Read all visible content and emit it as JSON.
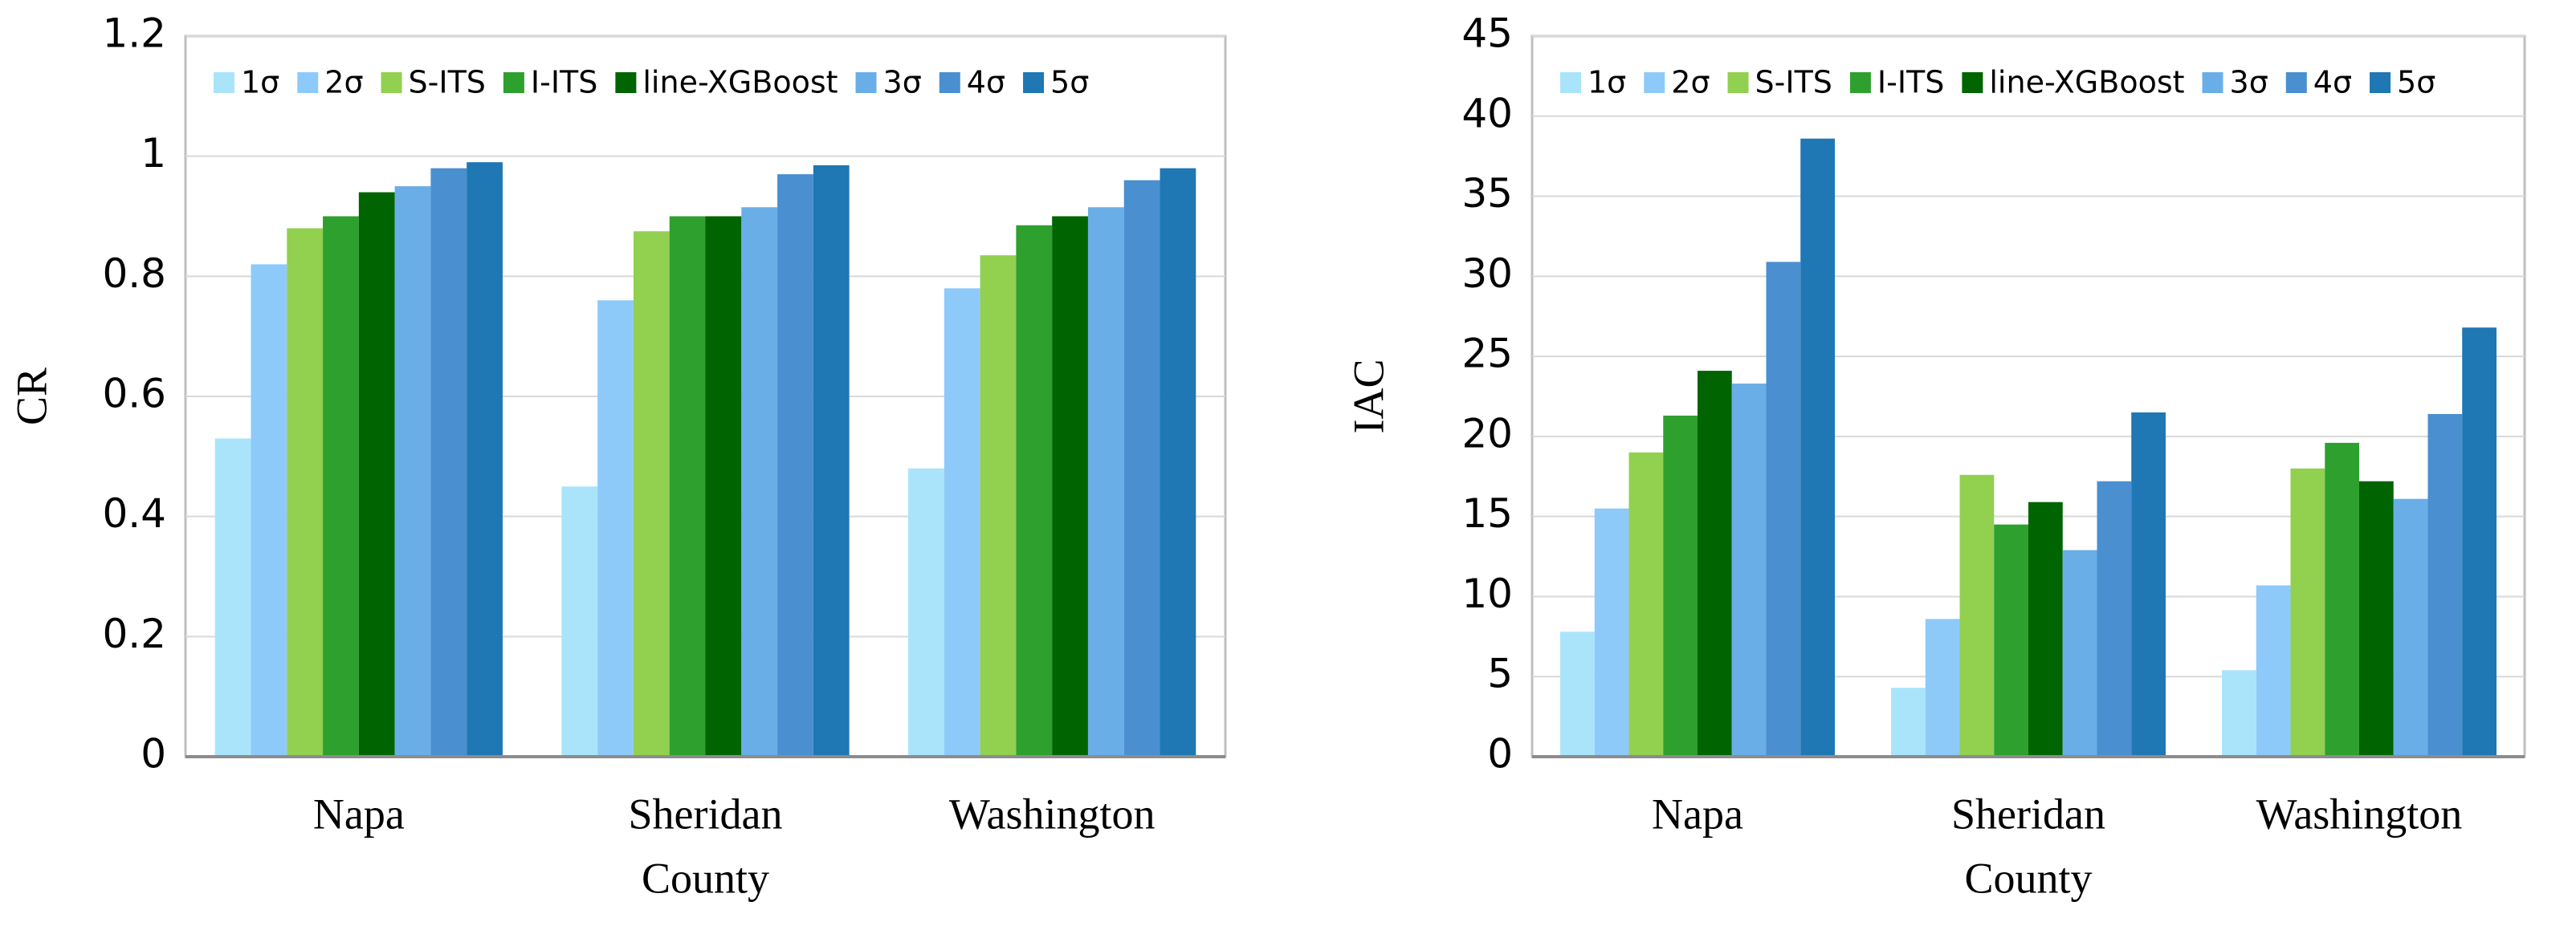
{
  "chart_data": [
    {
      "type": "bar",
      "ylabel": "CR",
      "xlabel": "County",
      "categories": [
        "Napa",
        "Sheridan",
        "Washington"
      ],
      "ylim": [
        0,
        1.2
      ],
      "yticks": [
        0,
        0.2,
        0.4,
        0.6,
        0.8,
        1,
        1.2
      ],
      "grid": true,
      "series": [
        {
          "name": "1σ",
          "color": "#a9e4fb",
          "values": [
            0.53,
            0.45,
            0.48
          ]
        },
        {
          "name": "2σ",
          "color": "#8ecaf9",
          "values": [
            0.82,
            0.76,
            0.78
          ]
        },
        {
          "name": "S-ITS",
          "color": "#92d050",
          "values": [
            0.88,
            0.875,
            0.835
          ]
        },
        {
          "name": "I-ITS",
          "color": "#2ea02e",
          "values": [
            0.9,
            0.9,
            0.885
          ]
        },
        {
          "name": "line-XGBoost",
          "color": "#006400",
          "values": [
            0.94,
            0.9,
            0.9
          ]
        },
        {
          "name": "3σ",
          "color": "#6aaee8",
          "values": [
            0.95,
            0.915,
            0.915
          ]
        },
        {
          "name": "4σ",
          "color": "#4a8fd0",
          "values": [
            0.98,
            0.97,
            0.96
          ]
        },
        {
          "name": "5σ",
          "color": "#1f77b4",
          "values": [
            0.99,
            0.985,
            0.98
          ]
        }
      ]
    },
    {
      "type": "bar",
      "ylabel": "IAC",
      "xlabel": "County",
      "categories": [
        "Napa",
        "Sheridan",
        "Washington"
      ],
      "ylim": [
        0,
        45
      ],
      "yticks": [
        0,
        5,
        10,
        15,
        20,
        25,
        30,
        35,
        40,
        45
      ],
      "grid": true,
      "series": [
        {
          "name": "1σ",
          "color": "#a9e4fb",
          "values": [
            7.8,
            4.3,
            5.4
          ]
        },
        {
          "name": "2σ",
          "color": "#8ecaf9",
          "values": [
            15.5,
            8.6,
            10.7
          ]
        },
        {
          "name": "S-ITS",
          "color": "#92d050",
          "values": [
            19.0,
            17.6,
            18.0
          ]
        },
        {
          "name": "I-ITS",
          "color": "#2ea02e",
          "values": [
            21.3,
            14.5,
            19.6
          ]
        },
        {
          "name": "line-XGBoost",
          "color": "#006400",
          "values": [
            24.1,
            15.9,
            17.2
          ]
        },
        {
          "name": "3σ",
          "color": "#6aaee8",
          "values": [
            23.3,
            12.9,
            16.1
          ]
        },
        {
          "name": "4σ",
          "color": "#4a8fd0",
          "values": [
            30.9,
            17.2,
            21.4
          ]
        },
        {
          "name": "5σ",
          "color": "#1f77b4",
          "values": [
            38.6,
            21.5,
            26.8
          ]
        }
      ]
    }
  ]
}
